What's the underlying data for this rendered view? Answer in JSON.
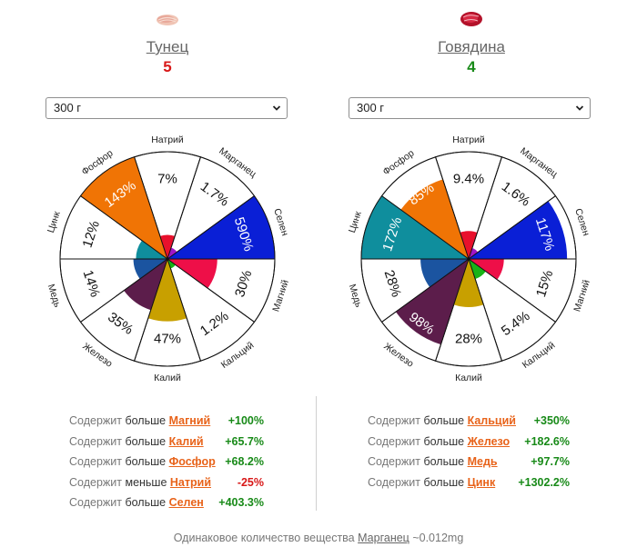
{
  "foods": [
    {
      "name": "Тунец",
      "score": "5",
      "score_color": "#d81818",
      "icon": "tuna-steak-icon",
      "portion": "300 г",
      "chart": {
        "sectors": [
          {
            "nutrient": "Натрий",
            "value_label": "7%",
            "percent": 7,
            "color": "#e8102c"
          },
          {
            "nutrient": "Марганец",
            "value_label": "1.7%",
            "percent": 1.7,
            "color": "#a016c8"
          },
          {
            "nutrient": "Селен",
            "value_label": "590%",
            "percent": 590,
            "color": "#0a1fd6"
          },
          {
            "nutrient": "Магний",
            "value_label": "30%",
            "percent": 30,
            "color": "#ee0f48"
          },
          {
            "nutrient": "Кальций",
            "value_label": "1.2%",
            "percent": 1.2,
            "color": "#19b317"
          },
          {
            "nutrient": "Калий",
            "value_label": "47%",
            "percent": 47,
            "color": "#c8a000"
          },
          {
            "nutrient": "Железо",
            "value_label": "35%",
            "percent": 35,
            "color": "#5c1d4b"
          },
          {
            "nutrient": "Медь",
            "value_label": "14%",
            "percent": 14,
            "color": "#1b54a0"
          },
          {
            "nutrient": "Цинк",
            "value_label": "12%",
            "percent": 12,
            "color": "#0f8e9d"
          },
          {
            "nutrient": "Фосфор",
            "value_label": "143%",
            "percent": 143,
            "color": "#f07405"
          }
        ]
      },
      "comparisons": [
        {
          "prefix": "Содержит",
          "word": "больше",
          "nutrient": "Магний",
          "value": "+100%"
        },
        {
          "prefix": "Содержит",
          "word": "больше",
          "nutrient": "Калий",
          "value": "+65.7%"
        },
        {
          "prefix": "Содержит",
          "word": "больше",
          "nutrient": "Фосфор",
          "value": "+68.2%"
        },
        {
          "prefix": "Содержит",
          "word": "меньше",
          "nutrient": "Натрий",
          "value": "-25%"
        },
        {
          "prefix": "Содержит",
          "word": "больше",
          "nutrient": "Селен",
          "value": "+403.3%"
        }
      ]
    },
    {
      "name": "Говядина",
      "score": "4",
      "score_color": "#188a18",
      "icon": "beef-steak-icon",
      "portion": "300 г",
      "chart": {
        "sectors": [
          {
            "nutrient": "Натрий",
            "value_label": "9.4%",
            "percent": 9.4,
            "color": "#e8102c"
          },
          {
            "nutrient": "Марганец",
            "value_label": "1.6%",
            "percent": 1.6,
            "color": "#a016c8"
          },
          {
            "nutrient": "Селен",
            "value_label": "117%",
            "percent": 117,
            "color": "#0a1fd6"
          },
          {
            "nutrient": "Магний",
            "value_label": "15%",
            "percent": 15,
            "color": "#ee0f48"
          },
          {
            "nutrient": "Кальций",
            "value_label": "5.4%",
            "percent": 5.4,
            "color": "#19b317"
          },
          {
            "nutrient": "Калий",
            "value_label": "28%",
            "percent": 28,
            "color": "#c8a000"
          },
          {
            "nutrient": "Железо",
            "value_label": "98%",
            "percent": 98,
            "color": "#5c1d4b"
          },
          {
            "nutrient": "Медь",
            "value_label": "28%",
            "percent": 28,
            "color": "#1b54a0"
          },
          {
            "nutrient": "Цинк",
            "value_label": "172%",
            "percent": 172,
            "color": "#0f8e9d"
          },
          {
            "nutrient": "Фосфор",
            "value_label": "85%",
            "percent": 85,
            "color": "#f07405"
          }
        ]
      },
      "comparisons": [
        {
          "prefix": "Содержит",
          "word": "больше",
          "nutrient": "Кальций",
          "value": "+350%"
        },
        {
          "prefix": "Содержит",
          "word": "больше",
          "nutrient": "Железо",
          "value": "+182.6%"
        },
        {
          "prefix": "Содержит",
          "word": "больше",
          "nutrient": "Медь",
          "value": "+97.7%"
        },
        {
          "prefix": "Содержит",
          "word": "больше",
          "nutrient": "Цинк",
          "value": "+1302.2%"
        }
      ]
    }
  ],
  "footer": {
    "prefix": "Одинаковое количество вещества",
    "nutrient": "Марганец",
    "value": "~0.012mg"
  }
}
